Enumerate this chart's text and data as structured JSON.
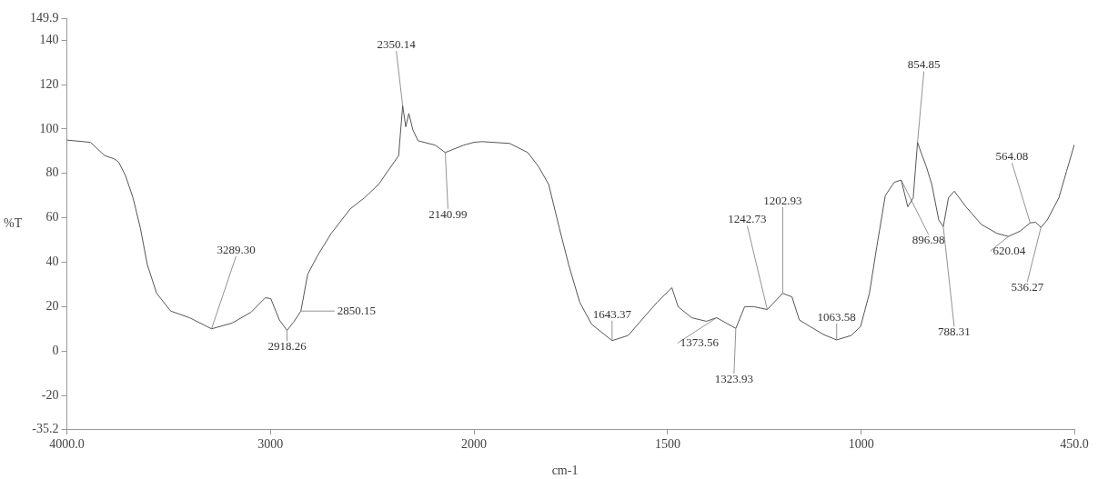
{
  "chart_data": [
    {
      "type": "line",
      "ylabel": "%T",
      "xlim": [
        4000,
        2000
      ],
      "xticks": [
        {
          "value": 4000,
          "label": "4000.0"
        },
        3000,
        2000
      ],
      "ylim": [
        -35.2,
        149.9
      ],
      "yticks": [
        149.9,
        140,
        120,
        100,
        80,
        60,
        40,
        20,
        0,
        -20,
        -35.2
      ],
      "grid": false,
      "marker": "none",
      "line_style": "solid",
      "series": [
        {
          "color": "#555555",
          "x": [
            4000,
            3884,
            3814,
            3768,
            3745,
            3712,
            3675,
            3638,
            3605,
            3559,
            3490,
            3397,
            3289.3,
            3188,
            3095,
            3025,
            2998,
            2956,
            2918.26,
            2886,
            2850.15,
            2817,
            2770,
            2701,
            2608,
            2538,
            2469,
            2370,
            2350.14,
            2335,
            2320,
            2300,
            2275,
            2190,
            2140.99,
            2051,
            2000
          ],
          "values": [
            95,
            94,
            88,
            86.6,
            85,
            79,
            69,
            55,
            39,
            26,
            18,
            15,
            10,
            12.6,
            17.5,
            24,
            23.6,
            14,
            9.3,
            13,
            18,
            34.5,
            42.7,
            53,
            64,
            69,
            75,
            88,
            110.5,
            101,
            107,
            99.6,
            94.7,
            92.7,
            89.4,
            92.7,
            94
          ]
        }
      ],
      "annotations": [
        {
          "text": "3289.30",
          "x": 3289.3,
          "y": 10
        },
        {
          "text": "2918.26",
          "x": 2918.26,
          "y": 9.3
        },
        {
          "text": "2850.15",
          "x": 2850.15,
          "y": 18
        },
        {
          "text": "2350.14",
          "x": 2350.14,
          "y": 110.5
        },
        {
          "text": "2140.99",
          "x": 2140.99,
          "y": 89.4
        }
      ]
    },
    {
      "type": "line",
      "xlabel": "cm-1",
      "tick_labels": "x",
      "xlim": [
        2000,
        450
      ],
      "xticks": [
        1500,
        1000,
        {
          "value": 450,
          "label": "450.0"
        }
      ],
      "ylim": [
        -35.2,
        149.9
      ],
      "grid": false,
      "marker": "none",
      "line_style": "solid",
      "series": [
        {
          "color": "#555555",
          "x": [
            2000,
            1979,
            1908,
            1861,
            1833,
            1807,
            1779,
            1755,
            1727,
            1696,
            1643.37,
            1602,
            1567,
            1527,
            1489,
            1473,
            1438,
            1400,
            1373.56,
            1323.93,
            1301,
            1278,
            1242.73,
            1202.93,
            1179,
            1160,
            1132,
            1096,
            1063.58,
            1026,
            1002,
            979,
            960,
            938,
            915,
            896.98,
            880,
            866,
            854.85,
            845,
            832,
            818,
            800,
            788.31,
            775,
            760,
            730,
            690,
            650,
            620.04,
            590,
            564.08,
            550,
            536.27,
            520,
            490,
            470,
            450
          ],
          "values": [
            94,
            94.3,
            93.5,
            89.4,
            83,
            75,
            55,
            38.6,
            22,
            12,
            4.7,
            7,
            14,
            22,
            28.5,
            20,
            15,
            13.4,
            15,
            10.2,
            20,
            20,
            18.7,
            26,
            24.4,
            14,
            11,
            7.3,
            5,
            7,
            11,
            26,
            47,
            70,
            76,
            77,
            65,
            69,
            94,
            89,
            83,
            75,
            59,
            56,
            69,
            72,
            65,
            57,
            53,
            51.6,
            54,
            57.7,
            58,
            55.7,
            59,
            69,
            81,
            93
          ]
        }
      ],
      "annotations": [
        {
          "text": "1643.37",
          "x": 1643.37,
          "y": 4.7
        },
        {
          "text": "1373.56",
          "x": 1373.56,
          "y": 15
        },
        {
          "text": "1323.93",
          "x": 1323.93,
          "y": 10.2
        },
        {
          "text": "1242.73",
          "x": 1242.73,
          "y": 18.7
        },
        {
          "text": "1202.93",
          "x": 1202.93,
          "y": 26
        },
        {
          "text": "1063.58",
          "x": 1063.58,
          "y": 5
        },
        {
          "text": "896.98",
          "x": 896.98,
          "y": 77
        },
        {
          "text": "854.85",
          "x": 854.85,
          "y": 94
        },
        {
          "text": "788.31",
          "x": 788.31,
          "y": 56
        },
        {
          "text": "620.04",
          "x": 620.04,
          "y": 51.6
        },
        {
          "text": "564.08",
          "x": 564.08,
          "y": 57.7
        },
        {
          "text": "536.27",
          "x": 536.27,
          "y": 55.7
        }
      ]
    }
  ]
}
